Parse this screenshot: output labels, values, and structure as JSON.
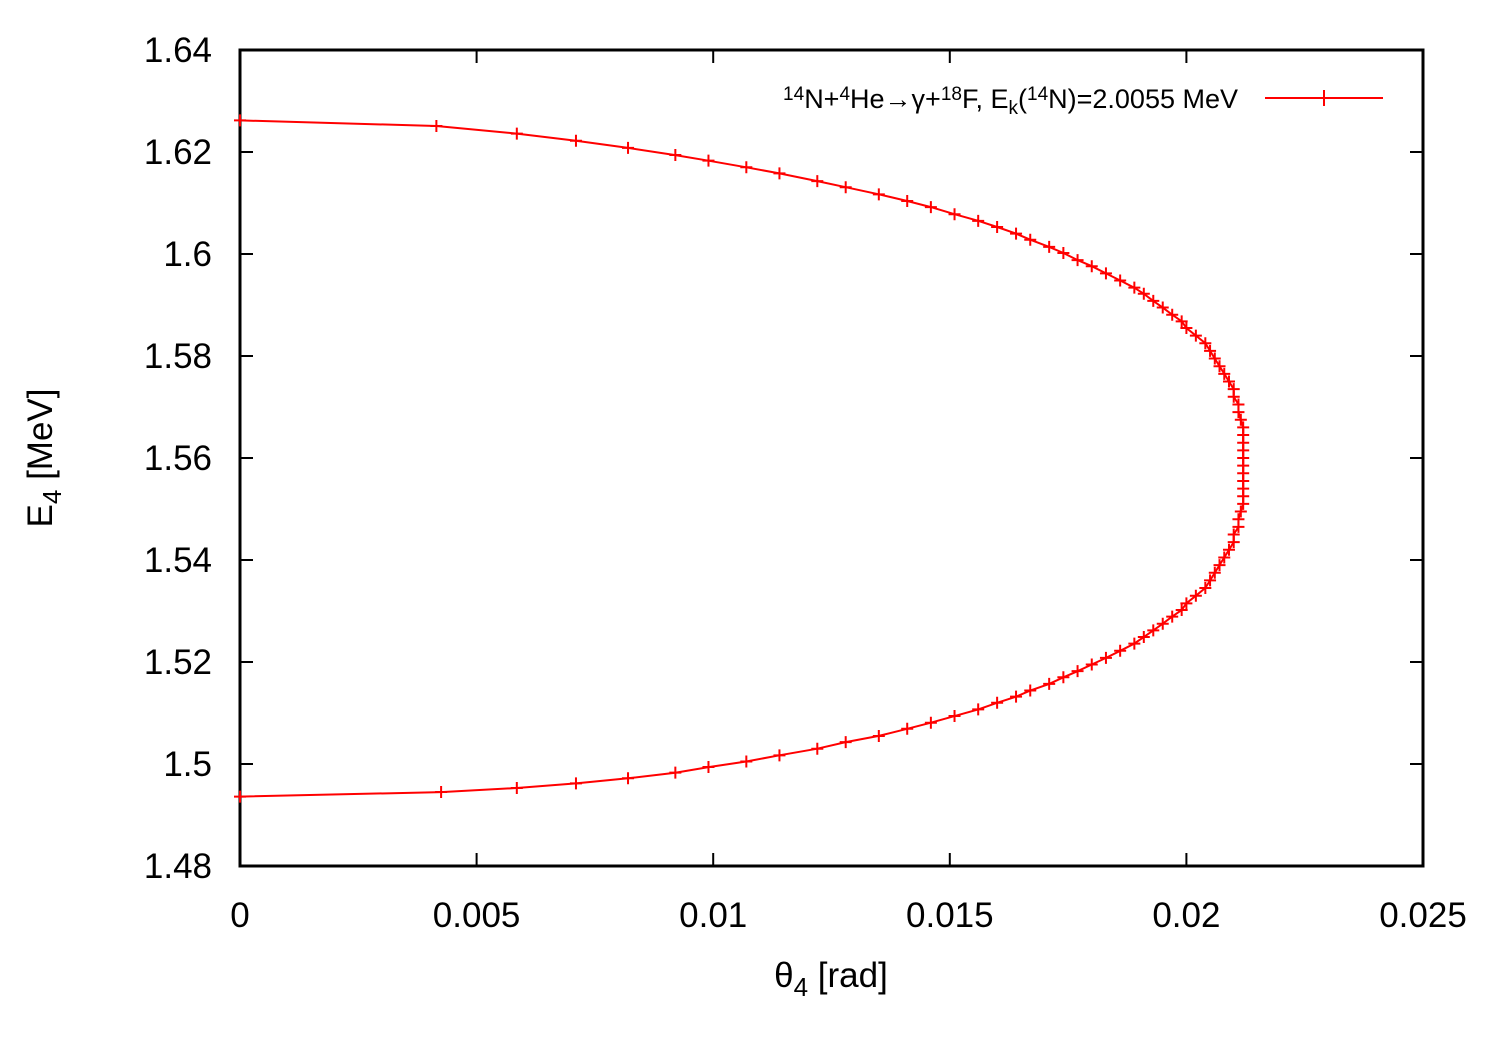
{
  "chart_data": {
    "type": "line",
    "xlabel": {
      "main": "θ",
      "sub": "4",
      "unit": " [rad]"
    },
    "ylabel": {
      "main": "E",
      "sub": "4",
      "unit": " [MeV]"
    },
    "xlim": [
      0,
      0.025
    ],
    "ylim": [
      1.48,
      1.64
    ],
    "x_ticks": [
      "0",
      "0.005",
      "0.01",
      "0.015",
      "0.02",
      "0.025"
    ],
    "y_ticks": [
      "1.48",
      "1.5",
      "1.52",
      "1.54",
      "1.56",
      "1.58",
      "1.6",
      "1.62",
      "1.64"
    ],
    "grid": false,
    "legend_position": "top-right",
    "line_color": "#ff0000",
    "marker": "plus",
    "series": [
      {
        "legend": {
          "reaction_parts": [
            {
              "t": "14",
              "s": "sup"
            },
            {
              "t": "N+",
              "s": "normal"
            },
            {
              "t": "4",
              "s": "sup"
            },
            {
              "t": "He→γ+",
              "s": "normal"
            },
            {
              "t": "18",
              "s": "sup"
            },
            {
              "t": "F, E",
              "s": "normal"
            },
            {
              "t": "k",
              "s": "sub"
            },
            {
              "t": "(",
              "s": "normal"
            },
            {
              "t": "14",
              "s": "sup"
            },
            {
              "t": "N)=2.0055 MeV",
              "s": "normal"
            }
          ]
        },
        "points_upper_branch": [
          [
            0.0,
            1.6262
          ],
          [
            0.00415,
            1.6251
          ],
          [
            0.00585,
            1.6236
          ],
          [
            0.0071,
            1.6222
          ],
          [
            0.0082,
            1.6208
          ],
          [
            0.0092,
            1.6194
          ],
          [
            0.0099,
            1.6183
          ],
          [
            0.0107,
            1.617
          ],
          [
            0.0114,
            1.6158
          ],
          [
            0.0122,
            1.6143
          ],
          [
            0.0128,
            1.6131
          ],
          [
            0.0135,
            1.6117
          ],
          [
            0.0141,
            1.6104
          ],
          [
            0.0146,
            1.6092
          ],
          [
            0.0151,
            1.6078
          ],
          [
            0.0156,
            1.6065
          ],
          [
            0.016,
            1.6053
          ],
          [
            0.0164,
            1.604
          ],
          [
            0.0167,
            1.6028
          ],
          [
            0.0171,
            1.6014
          ],
          [
            0.0174,
            1.6002
          ],
          [
            0.0177,
            1.5988
          ],
          [
            0.018,
            1.5976
          ],
          [
            0.0183,
            1.5962
          ],
          [
            0.0186,
            1.5948
          ],
          [
            0.0189,
            1.5934
          ],
          [
            0.0191,
            1.5922
          ],
          [
            0.0193,
            1.5908
          ],
          [
            0.0195,
            1.5895
          ],
          [
            0.0197,
            1.5881
          ],
          [
            0.0199,
            1.5868
          ],
          [
            0.02,
            1.5855
          ],
          [
            0.0202,
            1.584
          ],
          [
            0.0204,
            1.5825
          ],
          [
            0.0205,
            1.581
          ],
          [
            0.0206,
            1.5795
          ],
          [
            0.0207,
            1.578
          ],
          [
            0.0208,
            1.5765
          ],
          [
            0.0209,
            1.575
          ],
          [
            0.021,
            1.5735
          ],
          [
            0.021,
            1.572
          ],
          [
            0.0211,
            1.5705
          ],
          [
            0.0211,
            1.569
          ],
          [
            0.02115,
            1.5675
          ],
          [
            0.0212,
            1.566
          ],
          [
            0.0212,
            1.5645
          ],
          [
            0.0212,
            1.563
          ],
          [
            0.0212,
            1.5615
          ],
          [
            0.0212,
            1.56
          ],
          [
            0.0212,
            1.5585
          ]
        ],
        "points_lower_branch": [
          [
            0.0212,
            1.557
          ],
          [
            0.0212,
            1.5555
          ],
          [
            0.0212,
            1.554
          ],
          [
            0.0212,
            1.5525
          ],
          [
            0.0212,
            1.551
          ],
          [
            0.02115,
            1.5495
          ],
          [
            0.0211,
            1.548
          ],
          [
            0.0211,
            1.5465
          ],
          [
            0.021,
            1.545
          ],
          [
            0.021,
            1.5435
          ],
          [
            0.0209,
            1.542
          ],
          [
            0.0208,
            1.5405
          ],
          [
            0.0207,
            1.539
          ],
          [
            0.0206,
            1.5375
          ],
          [
            0.0205,
            1.536
          ],
          [
            0.0204,
            1.5345
          ],
          [
            0.0202,
            1.533
          ],
          [
            0.02,
            1.5315
          ],
          [
            0.0199,
            1.5302
          ],
          [
            0.0197,
            1.5289
          ],
          [
            0.0195,
            1.5275
          ],
          [
            0.0193,
            1.5262
          ],
          [
            0.0191,
            1.5249
          ],
          [
            0.0189,
            1.5236
          ],
          [
            0.0186,
            1.5222
          ],
          [
            0.0183,
            1.5208
          ],
          [
            0.018,
            1.5195
          ],
          [
            0.0177,
            1.5182
          ],
          [
            0.0174,
            1.517
          ],
          [
            0.0171,
            1.5157
          ],
          [
            0.0167,
            1.5144
          ],
          [
            0.0164,
            1.5132
          ],
          [
            0.016,
            1.512
          ],
          [
            0.0156,
            1.5107
          ],
          [
            0.0151,
            1.5094
          ],
          [
            0.0146,
            1.5081
          ],
          [
            0.0141,
            1.5069
          ],
          [
            0.0135,
            1.5055
          ],
          [
            0.0128,
            1.5043
          ],
          [
            0.0122,
            1.503
          ],
          [
            0.0114,
            1.5017
          ],
          [
            0.0107,
            1.5005
          ],
          [
            0.0099,
            1.4994
          ],
          [
            0.0092,
            1.4983
          ],
          [
            0.0082,
            1.4972
          ],
          [
            0.0071,
            1.4962
          ],
          [
            0.00585,
            1.4953
          ],
          [
            0.00425,
            1.4945
          ],
          [
            0.0,
            1.4936
          ]
        ]
      }
    ]
  }
}
